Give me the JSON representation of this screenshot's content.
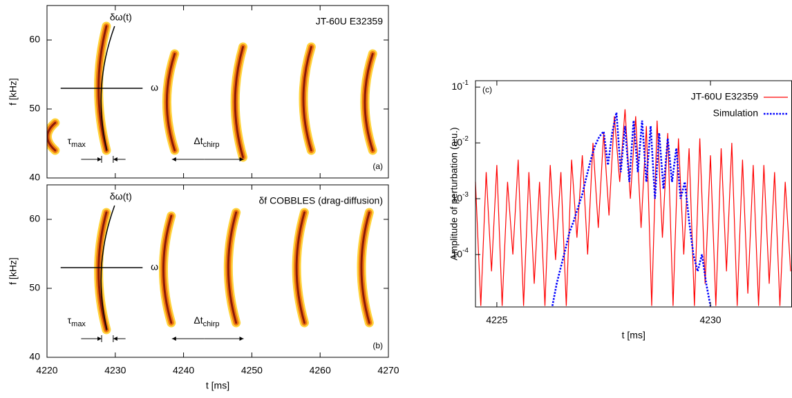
{
  "chart_data": [
    {
      "type": "spectrogram",
      "panel_label": "(a)",
      "annotation": "JT-60U E32359",
      "curve_label": "δω(t)",
      "line_label": "ω",
      "tau": {
        "main": "τ",
        "sub": "max"
      },
      "dt": {
        "main": "Δt",
        "sub": "chirp"
      },
      "y_label": "f [kHz]",
      "ylim": [
        40,
        65
      ],
      "yticks": [
        40,
        50,
        60
      ],
      "xlim": [
        4220,
        4270
      ],
      "xticks": [
        4220,
        4230,
        4240,
        4250,
        4260,
        4270
      ],
      "chirps": {
        "x": [
          4220.5,
          4228,
          4238,
          4248,
          4258,
          4267
        ],
        "f_low": [
          44,
          44,
          44,
          43,
          44,
          44
        ],
        "f_high": [
          48,
          62,
          58,
          59,
          59,
          58
        ]
      }
    },
    {
      "type": "spectrogram",
      "panel_label": "(b)",
      "annotation": "δf COBBLES (drag-diffusion)",
      "curve_label": "δω(t)",
      "line_label": "ω",
      "tau": {
        "main": "τ",
        "sub": "max"
      },
      "dt": {
        "main": "Δt",
        "sub": "chirp"
      },
      "y_label": "f [kHz]",
      "x_label": "t [ms]",
      "ylim": [
        40,
        65
      ],
      "yticks": [
        40,
        50,
        60
      ],
      "xlim": [
        4220,
        4270
      ],
      "xticks": [
        4220,
        4230,
        4240,
        4250,
        4260,
        4270
      ],
      "chirps": {
        "x": [
          4228,
          4237.5,
          4247,
          4257,
          4266.5
        ],
        "f_low": [
          44,
          45,
          45,
          45,
          45
        ],
        "f_high": [
          61,
          60.5,
          61,
          61,
          61
        ]
      }
    },
    {
      "type": "line",
      "panel_label": "(c)",
      "x_label": "t [ms]",
      "y_label": "Amplitude of perturbation (a.u.)",
      "log_y": true,
      "xlim": [
        4224.5,
        4231.9
      ],
      "xticks": [
        4225,
        4230
      ],
      "ylim": [
        1.15e-05,
        0.13
      ],
      "yticks": [
        {
          "value": 0.1,
          "label": "10",
          "exponent": "-1"
        },
        {
          "value": 0.01,
          "label": "10",
          "exponent": "-2"
        },
        {
          "value": 0.001,
          "label": "10",
          "exponent": "-3"
        },
        {
          "value": 0.0001,
          "label": "10",
          "exponent": "-4"
        }
      ],
      "legend": "top-right",
      "series": [
        {
          "name": "JT-60U E32359",
          "color": "#ff0000",
          "dash": "solid",
          "x": [
            4224.5,
            4224.625,
            4224.75,
            4224.875,
            4225,
            4225.125,
            4225.25,
            4225.375,
            4225.5,
            4225.625,
            4225.75,
            4225.875,
            4226,
            4226.125,
            4226.25,
            4226.375,
            4226.5,
            4226.625,
            4226.75,
            4226.875,
            4227,
            4227.125,
            4227.25,
            4227.375,
            4227.5,
            4227.625,
            4227.75,
            4227.875,
            4228,
            4228.125,
            4228.25,
            4228.375,
            4228.5,
            4228.625,
            4228.75,
            4228.875,
            4229,
            4229.125,
            4229.25,
            4229.375,
            4229.5,
            4229.625,
            4229.75,
            4229.875,
            4230,
            4230.125,
            4230.25,
            4230.375,
            4230.5,
            4230.625,
            4230.75,
            4230.875,
            4231,
            4231.125,
            4231.25,
            4231.375,
            4231.5,
            4231.625,
            4231.75,
            4231.875
          ],
          "values": [
            0.002,
            1.2e-05,
            0.003,
            5e-05,
            0.004,
            1.2e-05,
            0.002,
            0.0001,
            0.005,
            1.2e-05,
            0.003,
            3e-05,
            0.002,
            1.2e-05,
            0.004,
            8e-05,
            0.003,
            1.2e-05,
            0.005,
            0.0002,
            0.006,
            0.0001,
            0.01,
            0.0003,
            0.015,
            0.0005,
            0.03,
            0.002,
            0.04,
            0.001,
            0.03,
            0.0003,
            0.02,
            1.2e-05,
            0.025,
            0.0002,
            0.015,
            1.2e-05,
            0.012,
            0.0001,
            0.008,
            1.2e-05,
            0.012,
            3e-05,
            0.006,
            1.2e-05,
            0.008,
            5e-05,
            0.01,
            1.2e-05,
            0.005,
            2e-05,
            0.004,
            1.2e-05,
            0.004,
            3e-05,
            0.003,
            1.2e-05,
            0.002,
            5e-05
          ]
        },
        {
          "name": "Simulation",
          "color": "#0000ff",
          "dash": "dotted",
          "x": [
            4226.3,
            4226.4,
            4226.5,
            4226.6,
            4226.7,
            4226.8,
            4226.9,
            4227.0,
            4227.1,
            4227.2,
            4227.3,
            4227.4,
            4227.5,
            4227.6,
            4227.7,
            4227.8,
            4227.9,
            4228.0,
            4228.1,
            4228.2,
            4228.3,
            4228.4,
            4228.5,
            4228.6,
            4228.7,
            4228.8,
            4228.9,
            4229.0,
            4229.1,
            4229.2,
            4229.3,
            4229.4,
            4229.5,
            4229.6,
            4229.7,
            4229.8,
            4229.9,
            4230.0
          ],
          "values": [
            1.2e-05,
            3e-05,
            6e-05,
            0.00012,
            0.00025,
            0.0004,
            0.0007,
            0.0012,
            0.0025,
            0.005,
            0.009,
            0.013,
            0.016,
            0.004,
            0.015,
            0.035,
            0.003,
            0.02,
            0.002,
            0.025,
            0.003,
            0.025,
            0.002,
            0.02,
            0.001,
            0.015,
            0.0015,
            0.012,
            0.002,
            0.008,
            0.001,
            0.002,
            0.0004,
            0.0001,
            5e-05,
            0.0001,
            3e-05,
            1.2e-05
          ]
        }
      ]
    }
  ]
}
